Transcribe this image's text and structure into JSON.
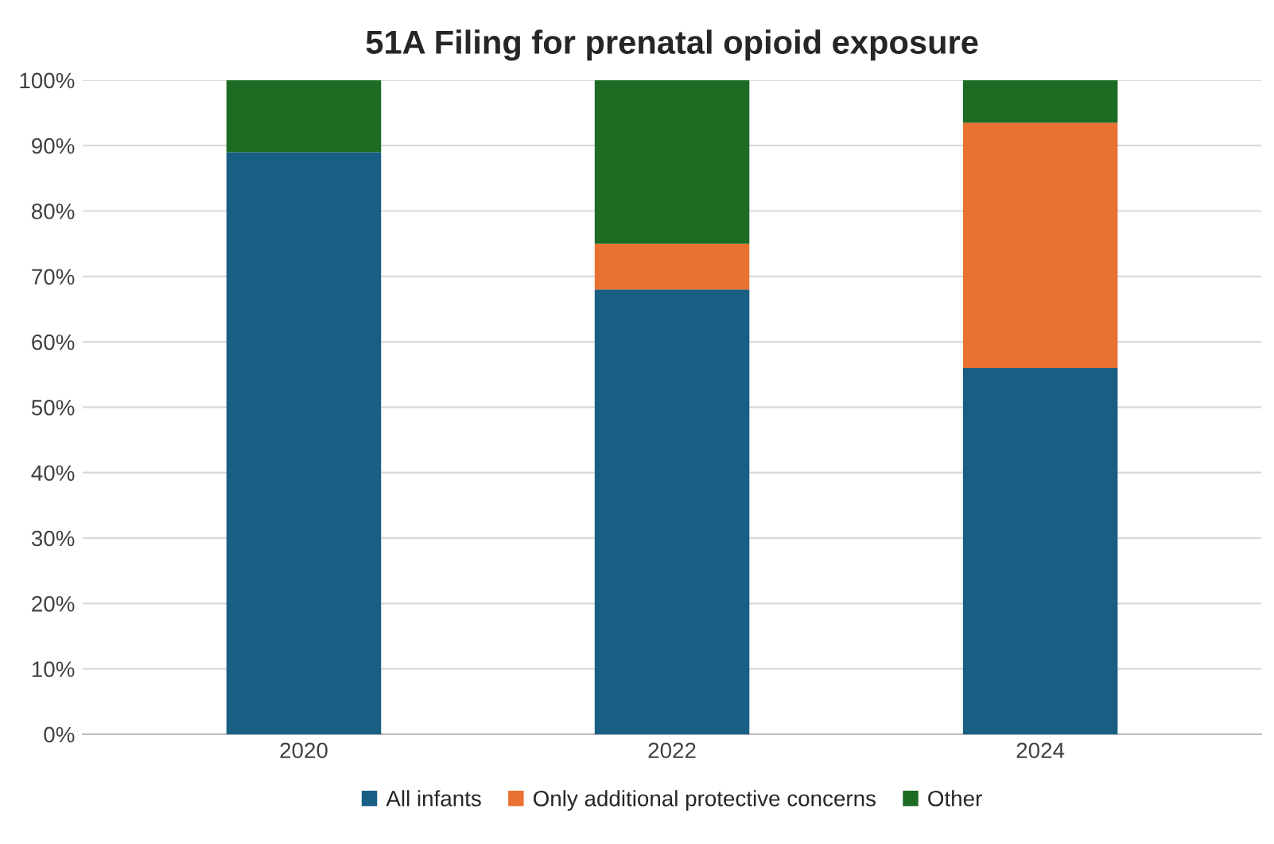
{
  "chart_data": {
    "type": "bar",
    "title": "51A Filing for prenatal opioid exposure",
    "categories": [
      "2020",
      "2022",
      "2024"
    ],
    "stacked": true,
    "series": [
      {
        "name": "All infants",
        "color": "#195e83",
        "values": [
          89,
          68,
          56
        ]
      },
      {
        "name": "Only additional protective concerns",
        "color": "#e97132",
        "values": [
          0,
          7,
          37.5
        ]
      },
      {
        "name": "Other",
        "color": "#1e6b24",
        "values": [
          11,
          25,
          6.5
        ]
      }
    ],
    "ylim": [
      0,
      100
    ],
    "yticks": [
      {
        "value": 0,
        "label": "0%"
      },
      {
        "value": 10,
        "label": "10%"
      },
      {
        "value": 20,
        "label": "20%"
      },
      {
        "value": 30,
        "label": "30%"
      },
      {
        "value": 40,
        "label": "40%"
      },
      {
        "value": 50,
        "label": "50%"
      },
      {
        "value": 60,
        "label": "60%"
      },
      {
        "value": 70,
        "label": "70%"
      },
      {
        "value": 80,
        "label": "80%"
      },
      {
        "value": 90,
        "label": "90%"
      },
      {
        "value": 100,
        "label": "100%"
      }
    ],
    "grid": "y",
    "legend": "bottom"
  }
}
